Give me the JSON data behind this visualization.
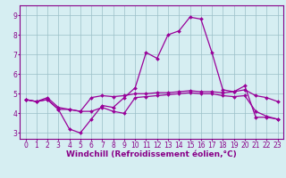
{
  "xlabel": "Windchill (Refroidissement éolien,°C)",
  "bg_color": "#d6eef2",
  "line_color": "#990099",
  "xlim": [
    -0.5,
    23.5
  ],
  "ylim": [
    2.7,
    9.5
  ],
  "xticks": [
    0,
    1,
    2,
    3,
    4,
    5,
    6,
    7,
    8,
    9,
    10,
    11,
    12,
    13,
    14,
    15,
    16,
    17,
    18,
    19,
    20,
    21,
    22,
    23
  ],
  "yticks": [
    3,
    4,
    5,
    6,
    7,
    8,
    9
  ],
  "series1_x": [
    0,
    1,
    2,
    3,
    4,
    5,
    6,
    7,
    8,
    9,
    10,
    11,
    12,
    13,
    14,
    15,
    16,
    17,
    18,
    19,
    20,
    21,
    22,
    23
  ],
  "series1_y": [
    4.7,
    4.6,
    4.7,
    4.2,
    3.2,
    3.0,
    3.7,
    4.4,
    4.3,
    4.8,
    5.3,
    7.1,
    6.8,
    8.0,
    8.2,
    8.9,
    8.8,
    7.1,
    5.2,
    5.1,
    5.4,
    3.8,
    3.8,
    3.7
  ],
  "series2_x": [
    0,
    1,
    2,
    3,
    4,
    5,
    6,
    7,
    8,
    9,
    10,
    11,
    12,
    13,
    14,
    15,
    16,
    17,
    18,
    19,
    20,
    21,
    22,
    23
  ],
  "series2_y": [
    4.7,
    4.6,
    4.8,
    4.3,
    4.2,
    4.1,
    4.1,
    4.3,
    4.1,
    4.0,
    4.8,
    4.85,
    4.9,
    4.95,
    5.0,
    5.05,
    5.0,
    5.0,
    4.9,
    4.85,
    4.9,
    4.1,
    3.85,
    3.7
  ],
  "series3_x": [
    0,
    1,
    2,
    3,
    4,
    5,
    6,
    7,
    8,
    9,
    10,
    11,
    12,
    13,
    14,
    15,
    16,
    17,
    18,
    19,
    20,
    21,
    22,
    23
  ],
  "series3_y": [
    4.7,
    4.6,
    4.7,
    4.2,
    4.2,
    4.1,
    4.8,
    4.9,
    4.85,
    4.9,
    5.0,
    5.0,
    5.05,
    5.05,
    5.1,
    5.15,
    5.1,
    5.1,
    5.05,
    5.1,
    5.2,
    4.9,
    4.8,
    4.6
  ],
  "grid_color": "#9bbfc7",
  "tick_label_fontsize": 5.5,
  "xlabel_fontsize": 6.5,
  "line_width": 0.9,
  "marker_size": 2.0
}
